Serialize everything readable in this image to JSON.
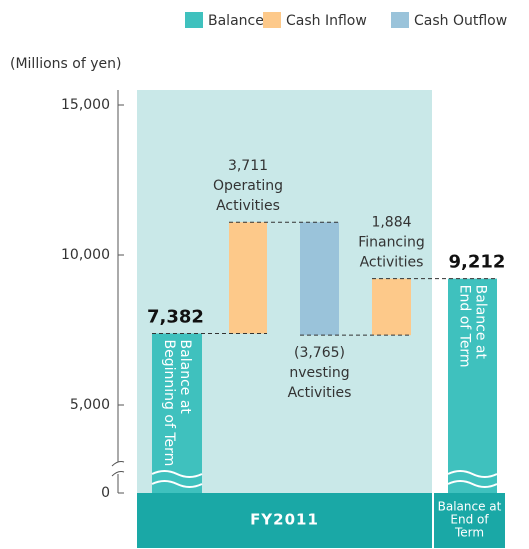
{
  "chart_data": {
    "type": "waterfall",
    "unit_label": "(Millions of yen)",
    "legend": [
      {
        "name": "Balance",
        "color": "#3fc1be"
      },
      {
        "name": "Cash Inflow",
        "color": "#fdc98a"
      },
      {
        "name": "Cash Outflow",
        "color": "#9ac3da"
      }
    ],
    "categories": [
      [
        "Balance at",
        "Beginning of Term"
      ],
      [
        "Operating",
        "Activities"
      ],
      [
        "nvesting",
        "Activities"
      ],
      [
        "Financing",
        "Activities"
      ],
      [
        "Balance at",
        "End of Term"
      ]
    ],
    "values": [
      7382,
      3711,
      -3765,
      1884,
      9212
    ],
    "value_labels": [
      "7,382",
      "3,711",
      "(3,765)",
      "1,884",
      "9,212"
    ],
    "measure": [
      "absolute",
      "relative",
      "relative",
      "relative",
      "absolute"
    ],
    "colors": [
      "#3fc1be",
      "#fdc98a",
      "#9ac3da",
      "#fdc98a",
      "#3fc1be"
    ],
    "ylim": [
      0,
      15000
    ],
    "yticks": [
      {
        "value": 0,
        "label": "0"
      },
      {
        "value": 5000,
        "label": "5,000"
      },
      {
        "value": 10000,
        "label": "10,000"
      },
      {
        "value": 15000,
        "label": "15,000"
      }
    ],
    "groups": [
      {
        "label": [
          "FY2011"
        ]
      },
      {
        "label": [
          "Balance at",
          "End of",
          "Term"
        ]
      }
    ]
  }
}
